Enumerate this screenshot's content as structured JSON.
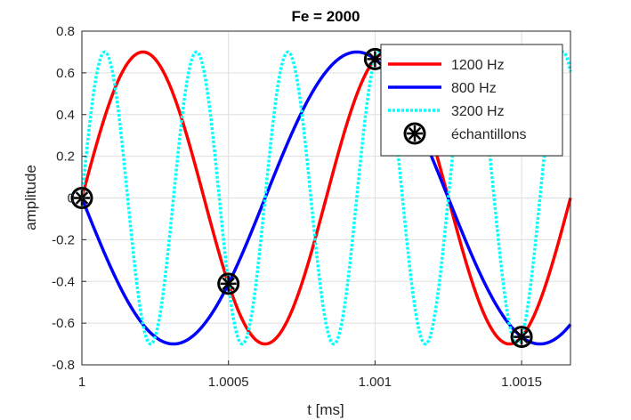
{
  "chart_data": {
    "type": "line",
    "title": "Fe = 2000",
    "xlabel": "t [ms]",
    "ylabel": "amplitude",
    "xlim": [
      1,
      1.0016667
    ],
    "ylim": [
      -0.8,
      0.8
    ],
    "xticks": [
      1,
      1.0005,
      1.001,
      1.0015
    ],
    "xtick_labels": [
      "1",
      "1.0005",
      "1.001",
      "1.0015"
    ],
    "yticks": [
      -0.8,
      -0.6,
      -0.4,
      -0.2,
      0,
      0.2,
      0.4,
      0.6,
      0.8
    ],
    "ytick_labels": [
      "-0.8",
      "-0.6",
      "-0.4",
      "-0.2",
      "0",
      "0.2",
      "0.4",
      "0.6",
      "0.8"
    ],
    "grid": true,
    "legend_position": "top-right",
    "series": [
      {
        "name": "1200 Hz",
        "frequency": 1200,
        "amplitude": 0.7,
        "sign": 1,
        "color": "#ff0000",
        "style": "solid"
      },
      {
        "name": "800 Hz",
        "frequency": 800,
        "amplitude": 0.7,
        "sign": -1,
        "color": "#0000ff",
        "style": "solid"
      },
      {
        "name": "3200 Hz",
        "frequency": 3200,
        "amplitude": 0.7,
        "sign": 1,
        "color": "#00ffff",
        "style": "dotted"
      }
    ],
    "samples": {
      "name": "échantillons",
      "t": [
        1,
        1.0005,
        1.001,
        1.0015
      ],
      "values": [
        0,
        -0.411,
        0.666,
        -0.666
      ],
      "color": "#000000"
    }
  }
}
